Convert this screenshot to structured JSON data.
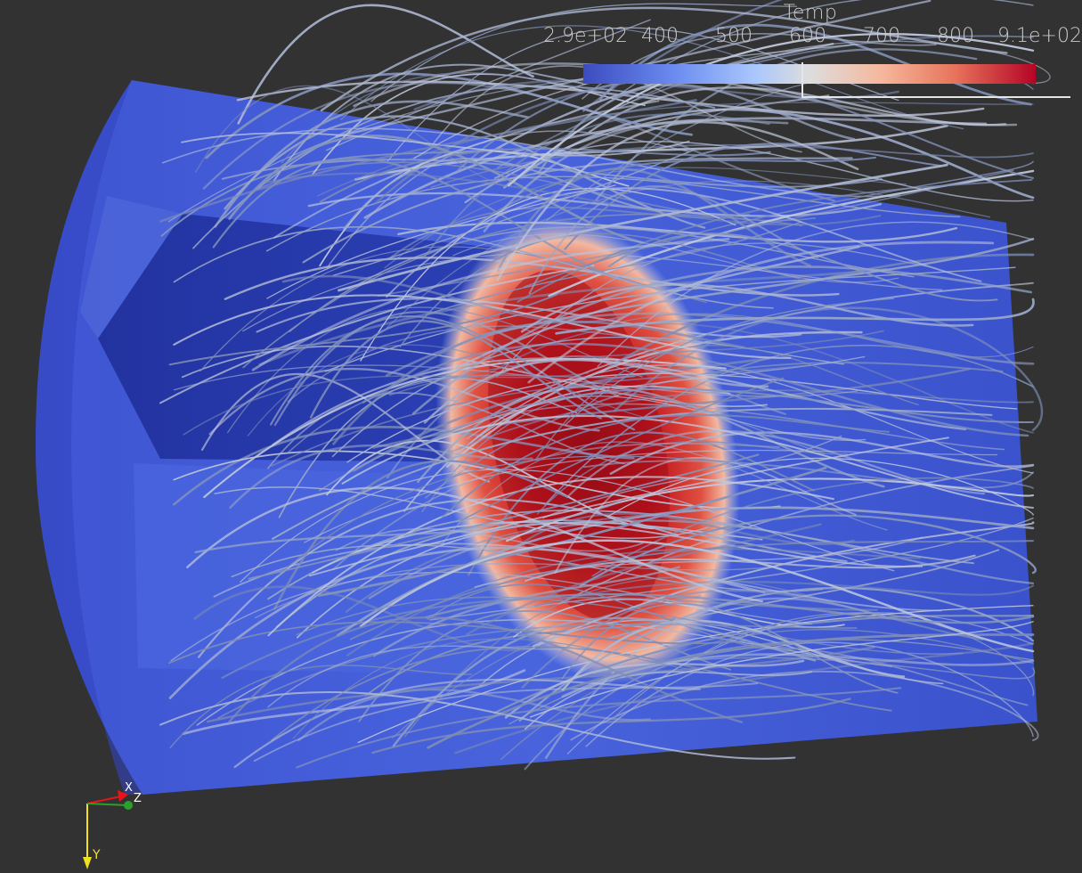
{
  "legend": {
    "title": "Temp",
    "ticks": [
      "2.9e+02",
      "400",
      "500",
      "600",
      "700",
      "800",
      "9.1e+02"
    ],
    "colormap": [
      "#3b4cc0",
      "#6a8bef",
      "#aac7fd",
      "#dddddd",
      "#f6b79c",
      "#e7745b",
      "#b40426"
    ]
  },
  "axes": {
    "x_label": "X",
    "y_label": "Y",
    "z_label": "Z",
    "x_color": "#e8141a",
    "y_color": "#f0e020",
    "z_color": "#2aa02a"
  },
  "colors": {
    "background": "#323232",
    "cold": "#3d55d0",
    "hot": "#c01820",
    "streamline": "#9aa8c8"
  }
}
